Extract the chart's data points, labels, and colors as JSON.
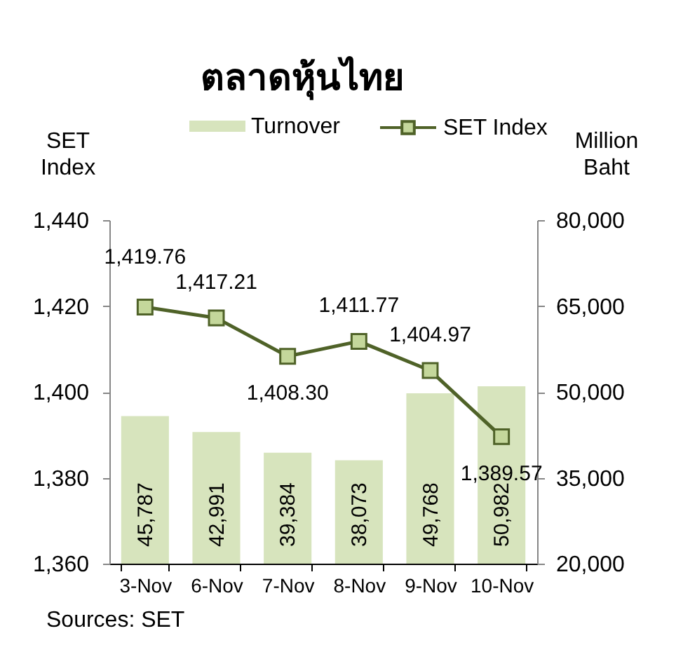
{
  "chart_data": {
    "type": "bar",
    "title": "ตลาดหุ้นไทย",
    "ylabel": "SET Index",
    "y2label": "Million Baht",
    "annotations": [
      "Sources: SET"
    ],
    "categories": [
      "3-Nov",
      "6-Nov",
      "7-Nov",
      "8-Nov",
      "9-Nov",
      "10-Nov"
    ],
    "series": [
      {
        "name": "Turnover",
        "axis": "y2",
        "color": "#d7e4bd",
        "values": [
          45787,
          42991,
          39384,
          38073,
          49768,
          50982
        ],
        "value_labels": [
          "45,787",
          "42,991",
          "39,384",
          "38,073",
          "49,768",
          "50,982"
        ]
      },
      {
        "name": "SET Index",
        "type": "line",
        "color": "#4f6228",
        "marker": "square",
        "values": [
          1419.76,
          1417.21,
          1408.3,
          1411.77,
          1404.97,
          1389.57
        ],
        "value_labels": [
          "1,419.76",
          "1,417.21",
          "1,408.30",
          "1,411.77",
          "1,404.97",
          "1,389.57"
        ]
      }
    ],
    "ylim": [
      1360,
      1440
    ],
    "yticks": [
      {
        "value": 1360,
        "label": "1,360"
      },
      {
        "value": 1380,
        "label": "1,380"
      },
      {
        "value": 1400,
        "label": "1,400"
      },
      {
        "value": 1420,
        "label": "1,420"
      },
      {
        "value": 1440,
        "label": "1,440"
      }
    ],
    "y2lim": [
      20000,
      80000
    ],
    "y2ticks": [
      {
        "value": 20000,
        "label": "20,000"
      },
      {
        "value": 35000,
        "label": "35,000"
      },
      {
        "value": 50000,
        "label": "50,000"
      },
      {
        "value": 65000,
        "label": "65,000"
      },
      {
        "value": 80000,
        "label": "80,000"
      }
    ],
    "legend": "top",
    "grid": false
  }
}
